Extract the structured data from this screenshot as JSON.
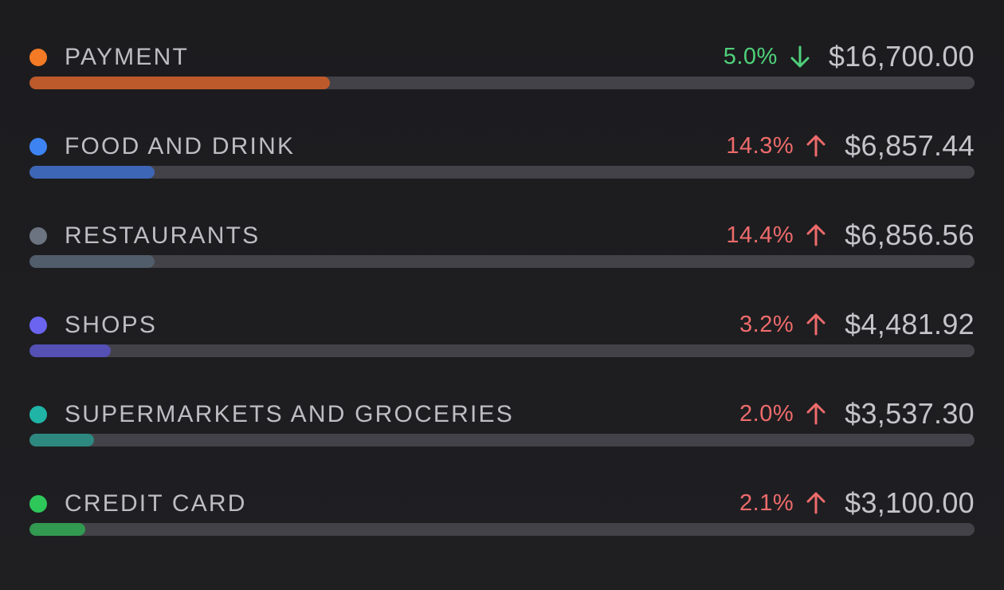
{
  "categories": [
    {
      "name": "PAYMENT",
      "change": "5.0%",
      "direction": "down",
      "amount": "$16,700.00",
      "dot_color": "#f47a25",
      "bar_color": "#bd5a2b",
      "bar_fraction": 0.318
    },
    {
      "name": "FOOD AND DRINK",
      "change": "14.3%",
      "direction": "up",
      "amount": "$6,857.44",
      "dot_color": "#3d84f2",
      "bar_color": "#3e66b6",
      "bar_fraction": 0.132
    },
    {
      "name": "RESTAURANTS",
      "change": "14.4%",
      "direction": "up",
      "amount": "$6,856.56",
      "dot_color": "#6b7480",
      "bar_color": "#525d6b",
      "bar_fraction": 0.132
    },
    {
      "name": "SHOPS",
      "change": "3.2%",
      "direction": "up",
      "amount": "$4,481.92",
      "dot_color": "#6a64f0",
      "bar_color": "#5450b4",
      "bar_fraction": 0.086
    },
    {
      "name": "SUPERMARKETS AND GROCERIES",
      "change": "2.0%",
      "direction": "up",
      "amount": "$3,537.30",
      "dot_color": "#1fb4a6",
      "bar_color": "#2d8880",
      "bar_fraction": 0.068
    },
    {
      "name": "CREDIT CARD",
      "change": "2.1%",
      "direction": "up",
      "amount": "$3,100.00",
      "dot_color": "#2ec75a",
      "bar_color": "#319950",
      "bar_fraction": 0.059
    }
  ],
  "status_colors": {
    "down": "#4fd17a",
    "up": "#ee6b6b"
  }
}
